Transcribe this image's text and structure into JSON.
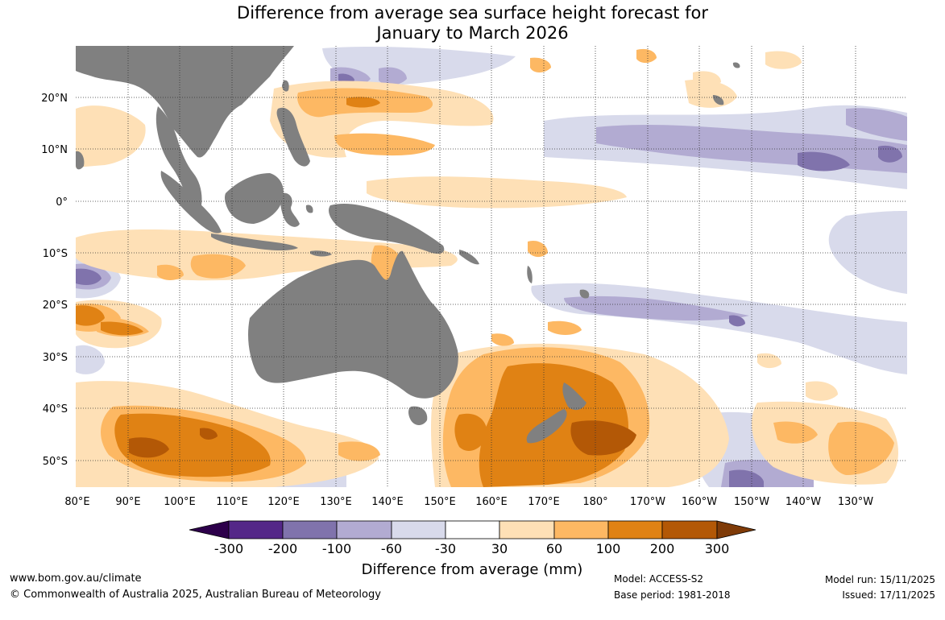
{
  "title": {
    "line1": "Difference from average sea surface height forecast for",
    "line2": "January to March 2026"
  },
  "map": {
    "lat_ticks": [
      "20°N",
      "10°N",
      "0°",
      "10°S",
      "20°S",
      "30°S",
      "40°S",
      "50°S"
    ],
    "lon_ticks": [
      "80°E",
      "90°E",
      "100°E",
      "110°E",
      "120°E",
      "130°E",
      "140°E",
      "150°E",
      "160°E",
      "170°E",
      "180°",
      "170°W",
      "160°W",
      "150°W",
      "140°W",
      "130°W"
    ],
    "land_color": "#808080",
    "gridline_color": "#333333"
  },
  "colorbar": {
    "title": "Difference from average (mm)",
    "tick_labels": [
      "-300",
      "-200",
      "-100",
      "-60",
      "-30",
      "30",
      "60",
      "100",
      "200",
      "300"
    ],
    "colors": [
      "#2d004b",
      "#542788",
      "#8073ac",
      "#b2abd2",
      "#d8daeb",
      "#ffffff",
      "#fee0b6",
      "#fdb863",
      "#e08214",
      "#b35806",
      "#7f3b08"
    ]
  },
  "footer": {
    "website": "www.bom.gov.au/climate",
    "copyright": "© Commonwealth of Australia 2025, Australian Bureau of Meteorology",
    "model": "Model: ACCESS-S2",
    "base_period": "Base period: 1981-2018",
    "model_run": "Model run: 15/11/2025",
    "issued": "Issued: 17/11/2025"
  }
}
